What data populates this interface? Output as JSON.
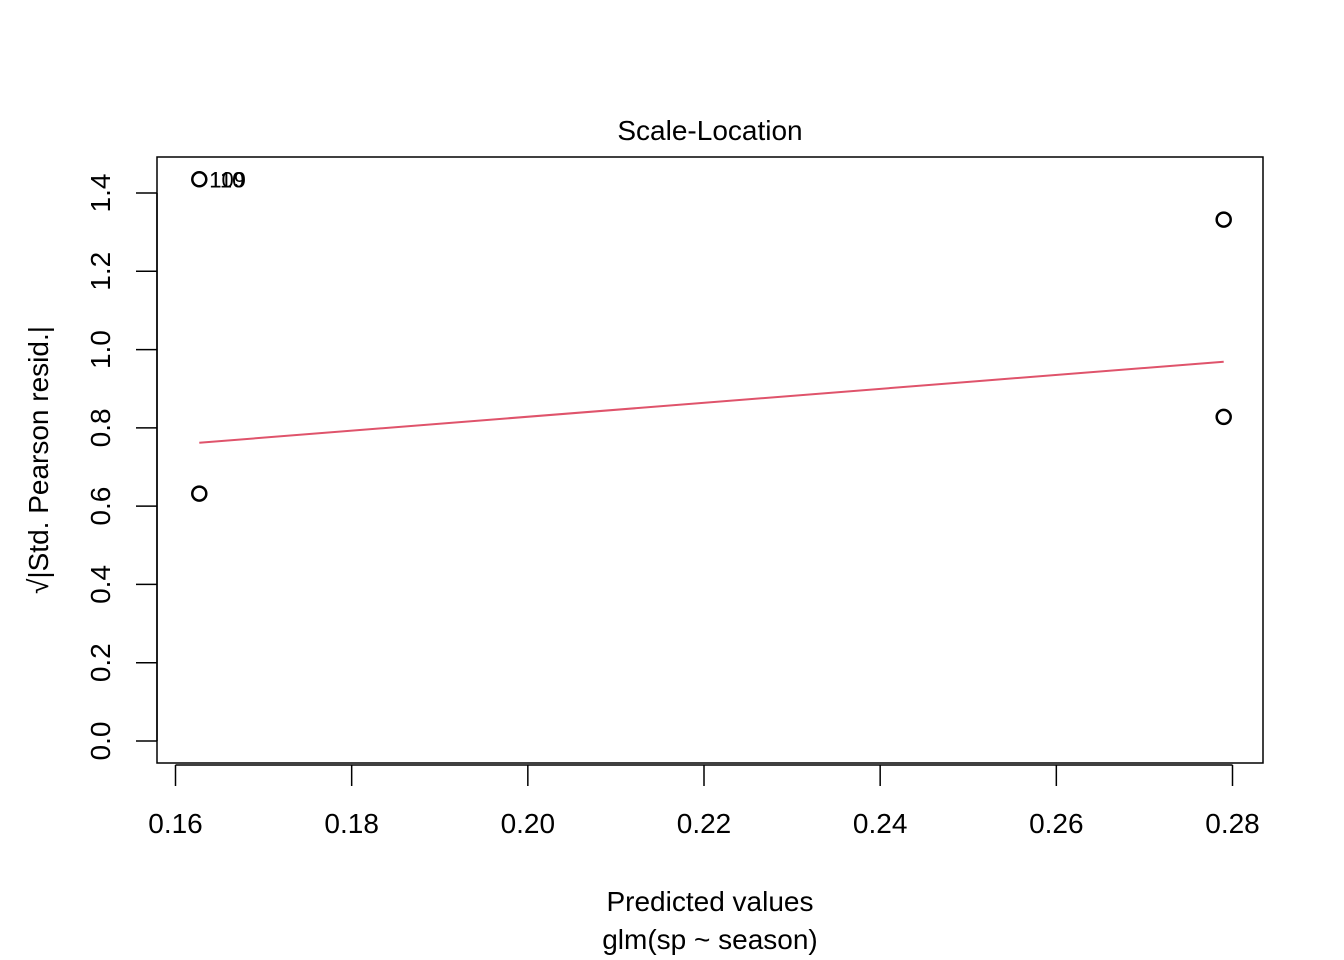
{
  "chart_data": {
    "type": "scatter",
    "title": "Scale-Location",
    "xlabel": "Predicted values",
    "xsublabel": "glm(sp ~ season)",
    "ylabel": "√|Std. Pearson resid.|",
    "xlim": [
      0.16,
      0.28
    ],
    "ylim": [
      0.0,
      1.4
    ],
    "x_ticks": [
      "0.16",
      "0.18",
      "0.20",
      "0.22",
      "0.24",
      "0.26",
      "0.28"
    ],
    "y_ticks": [
      "0.0",
      "0.2",
      "0.4",
      "0.6",
      "0.8",
      "1.0",
      "1.2",
      "1.4"
    ],
    "points": [
      {
        "x": 0.1627,
        "y": 1.435
      },
      {
        "x": 0.1627,
        "y": 0.632
      },
      {
        "x": 0.279,
        "y": 1.332
      },
      {
        "x": 0.279,
        "y": 0.828
      }
    ],
    "point_annotations": [
      {
        "x": 0.1627,
        "y": 1.435,
        "labels": [
          "109",
          "110"
        ]
      }
    ],
    "smooth_line": {
      "x": [
        0.1627,
        0.279
      ],
      "y": [
        0.762,
        0.969
      ],
      "color": "#DF536B"
    },
    "grid": false,
    "point_style": "open-circle",
    "colors": {
      "points": "#000000",
      "smooth": "#DF536B",
      "frame": "#000000"
    }
  }
}
